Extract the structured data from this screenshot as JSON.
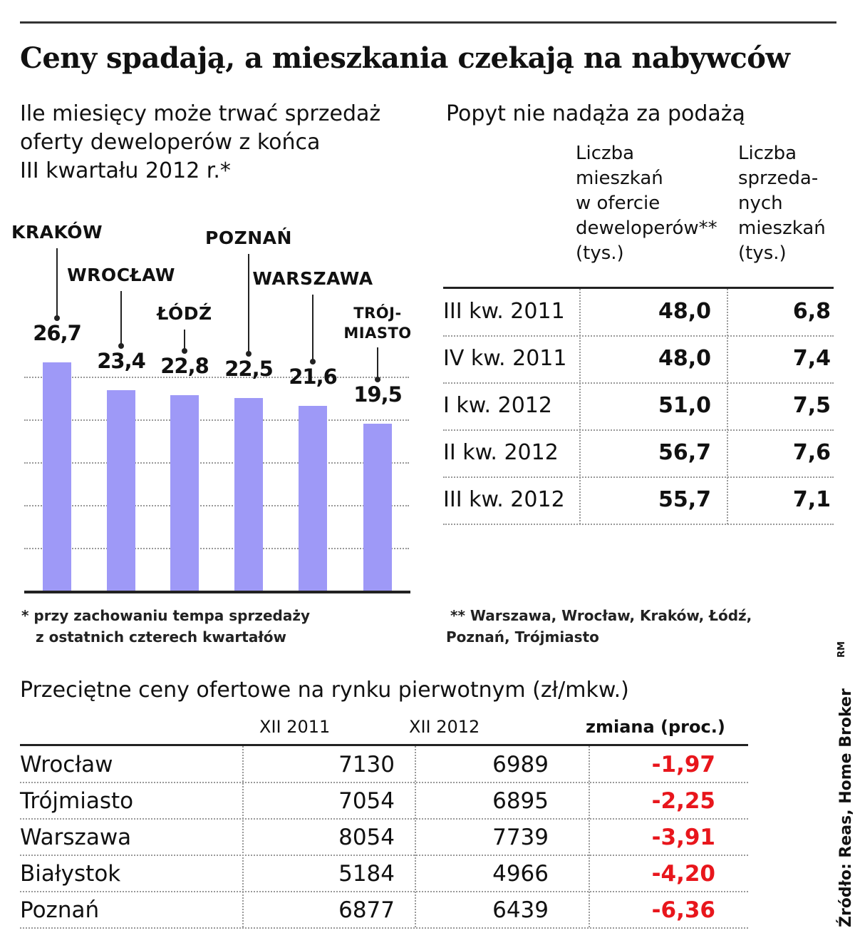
{
  "title": "Ceny spadają, a mieszkania czekają na nabywców",
  "chart_data": [
    {
      "type": "bar",
      "title": "Ile miesięcy może trwać sprzedaż oferty deweloperów z końca III kwartału 2012 r.*",
      "title_lines": [
        "Ile miesięcy może trwać sprzedaż",
        "oferty deweloperów z końca",
        "III kwartału 2012 r.*"
      ],
      "categories": [
        "KRAKÓW",
        "WROCŁAW",
        "ŁÓDŹ",
        "POZNAŃ",
        "WARSZAWA",
        "TRÓJMIASTO"
      ],
      "category_lines": [
        [
          "KRAKÓW"
        ],
        [
          "WROCŁAW"
        ],
        [
          "ŁÓDŹ"
        ],
        [
          "POZNAŃ"
        ],
        [
          "WARSZAWA"
        ],
        [
          "TRÓJ-",
          "MIASTO"
        ]
      ],
      "values": [
        26.7,
        23.4,
        22.8,
        22.5,
        21.6,
        19.5
      ],
      "value_labels": [
        "26,7",
        "23,4",
        "22,8",
        "22,5",
        "21,6",
        "19,5"
      ],
      "ylim": [
        0,
        30
      ],
      "grid": true,
      "bar_color": "#9e99f7",
      "footnote_lines": [
        "* przy zachowaniu tempa sprzedaży",
        "z ostatnich czterech kwartałów"
      ]
    },
    {
      "type": "table",
      "title": "Popyt nie nadąża za podażą",
      "columns": [
        {
          "label_lines": [
            "Liczba",
            "mieszkań",
            "w ofercie",
            "deweloperów**",
            "(tys.)"
          ]
        },
        {
          "label_lines": [
            "Liczba",
            "sprzeda-",
            "nych",
            "mieszkań",
            "(tys.)"
          ]
        }
      ],
      "rows": [
        {
          "period": "III kw. 2011",
          "offer": "48,0",
          "sold": "6,8"
        },
        {
          "period": "IV kw. 2011",
          "offer": "48,0",
          "sold": "7,4"
        },
        {
          "period": "I kw. 2012",
          "offer": "51,0",
          "sold": "7,5"
        },
        {
          "period": "II kw. 2012",
          "offer": "56,7",
          "sold": "7,6"
        },
        {
          "period": "III kw. 2012",
          "offer": "55,7",
          "sold": "7,1"
        }
      ],
      "footnote_lines": [
        "** Warszawa, Wrocław, Kraków, Łódź,",
        "Poznań, Trójmiasto"
      ]
    },
    {
      "type": "table",
      "title": "Przeciętne ceny ofertowe na rynku pierwotnym (zł/mkw.)",
      "columns": [
        "XII 2011",
        "XII 2012",
        "zmiana (proc.)"
      ],
      "rows": [
        {
          "city": "Wrocław",
          "v2011": "7130",
          "v2012": "6989",
          "change": "-1,97"
        },
        {
          "city": "Trójmiasto",
          "v2011": "7054",
          "v2012": "6895",
          "change": "-2,25"
        },
        {
          "city": "Warszawa",
          "v2011": "8054",
          "v2012": "7739",
          "change": "-3,91"
        },
        {
          "city": "Białystok",
          "v2011": "5184",
          "v2012": "4966",
          "change": "-4,20"
        },
        {
          "city": "Poznań",
          "v2011": "6877",
          "v2012": "6439",
          "change": "-6,36"
        }
      ],
      "change_color": "#e8161c"
    }
  ],
  "source": "Źródło: Reas, Home Broker",
  "author": "RM"
}
